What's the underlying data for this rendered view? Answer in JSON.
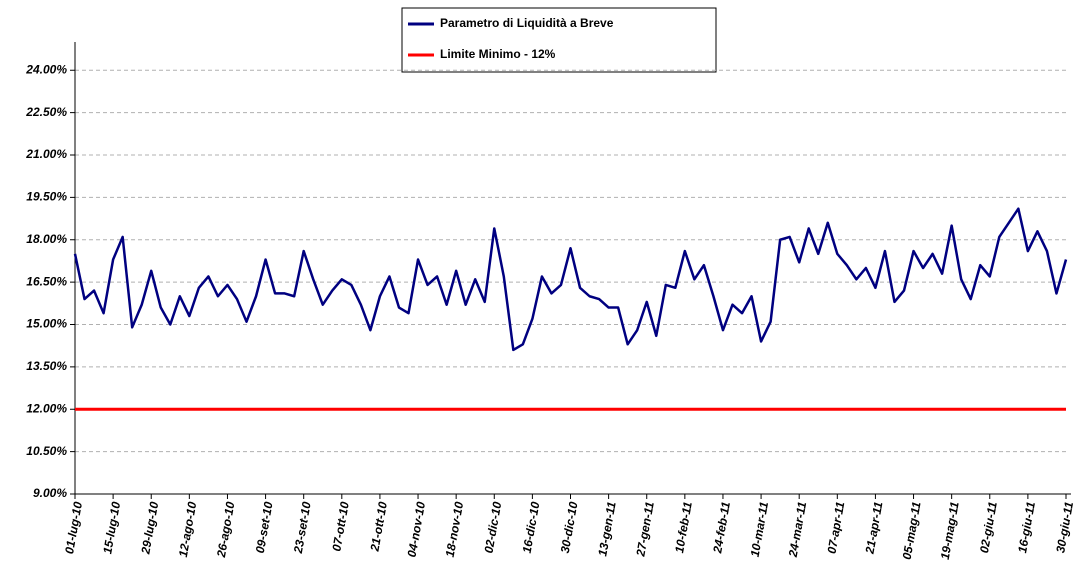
{
  "chart_data": {
    "type": "line",
    "categories": [
      "01-lug-10",
      null,
      null,
      null,
      "15-lug-10",
      null,
      null,
      null,
      "29-lug-10",
      null,
      null,
      null,
      "12-ago-10",
      null,
      null,
      null,
      "26-ago-10",
      null,
      null,
      null,
      "09-set-10",
      null,
      null,
      null,
      "23-set-10",
      null,
      null,
      null,
      "07-ott-10",
      null,
      null,
      null,
      "21-ott-10",
      null,
      null,
      null,
      "04-nov-10",
      null,
      null,
      null,
      "18-nov-10",
      null,
      null,
      null,
      "02-dic-10",
      null,
      null,
      null,
      "16-dic-10",
      null,
      null,
      null,
      "30-dic-10",
      null,
      null,
      null,
      "13-gen-11",
      null,
      null,
      null,
      "27-gen-11",
      null,
      null,
      null,
      "10-feb-11",
      null,
      null,
      null,
      "24-feb-11",
      null,
      null,
      null,
      "10-mar-11",
      null,
      null,
      null,
      "24-mar-11",
      null,
      null,
      null,
      "07-apr-11",
      null,
      null,
      null,
      "21-apr-11",
      null,
      null,
      null,
      "05-mag-11",
      null,
      null,
      null,
      "19-mag-11",
      null,
      null,
      null,
      "02-giu-11",
      null,
      null,
      null,
      "16-giu-11",
      null,
      null,
      null,
      "30-giu-11"
    ],
    "series": [
      {
        "name": "Parametro di Liquidità a Breve",
        "color": "#000080",
        "values": [
          17.5,
          15.9,
          16.2,
          15.4,
          17.3,
          18.1,
          14.9,
          15.7,
          16.9,
          15.6,
          15.0,
          16.0,
          15.3,
          16.3,
          16.7,
          16.0,
          16.4,
          15.9,
          15.1,
          16.0,
          17.3,
          16.1,
          16.1,
          16.0,
          17.6,
          16.6,
          15.7,
          16.2,
          16.6,
          16.4,
          15.7,
          14.8,
          16.0,
          16.7,
          15.6,
          15.4,
          17.3,
          16.4,
          16.7,
          15.7,
          16.9,
          15.7,
          16.6,
          15.8,
          18.4,
          16.7,
          14.1,
          14.3,
          15.2,
          16.7,
          16.1,
          16.4,
          17.7,
          16.3,
          16.0,
          15.9,
          15.6,
          15.6,
          14.3,
          14.8,
          15.8,
          14.6,
          16.4,
          16.3,
          17.6,
          16.6,
          17.1,
          16.0,
          14.8,
          15.7,
          15.4,
          16.0,
          14.4,
          15.1,
          18.0,
          18.1,
          17.2,
          18.4,
          17.5,
          18.6,
          17.5,
          17.1,
          16.6,
          17.0,
          16.3,
          17.6,
          15.8,
          16.2,
          17.6,
          17.0,
          17.5,
          16.8,
          18.5,
          16.6,
          15.9,
          17.1,
          16.7,
          18.1,
          18.6,
          19.1,
          17.6,
          18.3,
          17.6,
          16.1,
          17.3
        ]
      },
      {
        "name": "Limite Minimo - 12%",
        "color": "#ff0000",
        "values": [
          12,
          12,
          12,
          12,
          12,
          12,
          12,
          12,
          12,
          12,
          12,
          12,
          12,
          12,
          12,
          12,
          12,
          12,
          12,
          12,
          12,
          12,
          12,
          12,
          12,
          12,
          12,
          12,
          12,
          12,
          12,
          12,
          12,
          12,
          12,
          12,
          12,
          12,
          12,
          12,
          12,
          12,
          12,
          12,
          12,
          12,
          12,
          12,
          12,
          12,
          12,
          12,
          12,
          12,
          12,
          12,
          12,
          12,
          12,
          12,
          12,
          12,
          12,
          12,
          12,
          12,
          12,
          12,
          12,
          12,
          12,
          12,
          12,
          12,
          12,
          12,
          12,
          12,
          12,
          12,
          12,
          12,
          12,
          12,
          12,
          12,
          12,
          12,
          12,
          12,
          12,
          12,
          12,
          12,
          12,
          12,
          12,
          12,
          12,
          12,
          12,
          12,
          12,
          12,
          12
        ]
      }
    ],
    "ylim": [
      9,
      25
    ],
    "yticks": [
      {
        "value": 9,
        "label": "9.00%"
      },
      {
        "value": 10.5,
        "label": "10.50%"
      },
      {
        "value": 12,
        "label": "12.00%"
      },
      {
        "value": 13.5,
        "label": "13.50%"
      },
      {
        "value": 15,
        "label": "15.00%"
      },
      {
        "value": 16.5,
        "label": "16.50%"
      },
      {
        "value": 18,
        "label": "18.00%"
      },
      {
        "value": 19.5,
        "label": "19.50%"
      },
      {
        "value": 21,
        "label": "21.00%"
      },
      {
        "value": 22.5,
        "label": "22.50%"
      },
      {
        "value": 24,
        "label": "24.00%"
      }
    ],
    "grid": true
  }
}
